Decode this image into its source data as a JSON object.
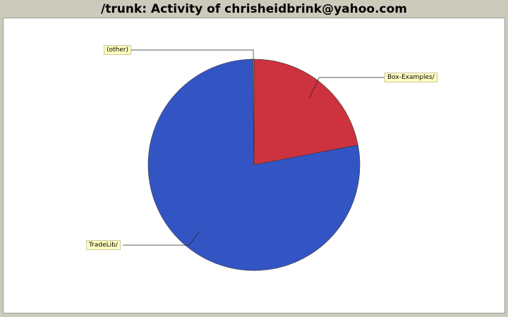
{
  "chart_data": {
    "type": "pie",
    "title": "/trunk: Activity of chrisheidbrink@yahoo.com",
    "slices": [
      {
        "label": "Box-Examples/",
        "value": 22.0,
        "color": "#cc333f"
      },
      {
        "label": "TradeLib/",
        "value": 77.8,
        "color": "#3355c4"
      },
      {
        "label": "(other)",
        "value": 0.2,
        "color": "#55aa55"
      }
    ]
  }
}
